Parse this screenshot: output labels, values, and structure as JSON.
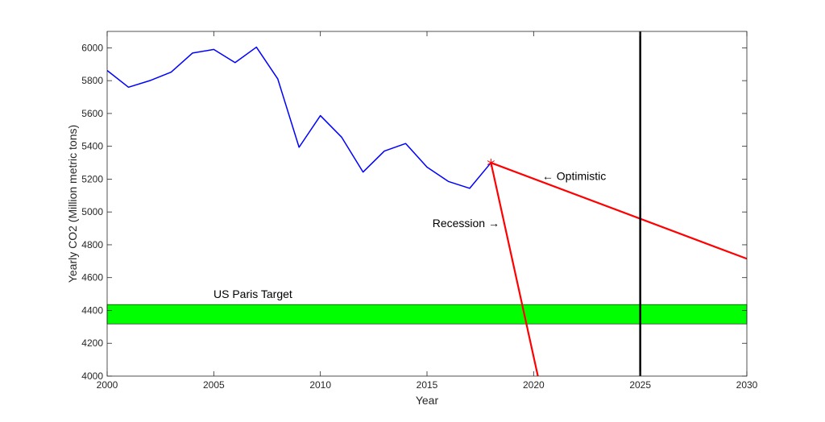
{
  "chart_data": {
    "type": "line",
    "xlabel": "Year",
    "ylabel": "Yearly CO2 (Million metric tons)",
    "xlim": [
      2000,
      2030
    ],
    "ylim": [
      4000,
      6100
    ],
    "x_ticks": [
      2000,
      2005,
      2010,
      2015,
      2020,
      2025,
      2030
    ],
    "y_ticks": [
      4000,
      4200,
      4400,
      4600,
      4800,
      5000,
      5200,
      5400,
      5600,
      5800,
      6000
    ],
    "grid": false,
    "series": [
      {
        "color": "#0000ff",
        "x": [
          2000,
          2001,
          2002,
          2003,
          2004,
          2005,
          2006,
          2007,
          2008,
          2009,
          2010,
          2011,
          2012,
          2013,
          2014,
          2015,
          2016,
          2017,
          2018
        ],
        "y": [
          5862,
          5760,
          5800,
          5852,
          5968,
          5990,
          5910,
          6004,
          5811,
          5394,
          5587,
          5455,
          5243,
          5371,
          5417,
          5273,
          5186,
          5144,
          5300
        ]
      },
      {
        "color": "#ff0000",
        "x": [
          2018,
          2030
        ],
        "y": [
          5300,
          4715
        ]
      },
      {
        "color": "#ff0000",
        "x": [
          2018,
          2020.2
        ],
        "y": [
          5300,
          4000
        ]
      }
    ],
    "marker": {
      "x": 2018,
      "y": 5300,
      "symbol": "*",
      "color": "#ff0000"
    },
    "target_band": {
      "label": "US Paris Target",
      "y_range": [
        4318,
        4436
      ],
      "color": "#00ff00"
    },
    "vertical_line": {
      "x": 2025,
      "color": "#000000"
    },
    "annotations": [
      {
        "text": "← Optimistic",
        "x": 2020.4,
        "y": 5195,
        "anchor": "start"
      },
      {
        "text": "Recession →",
        "x": 2018.4,
        "y": 4908,
        "anchor": "end"
      }
    ]
  }
}
